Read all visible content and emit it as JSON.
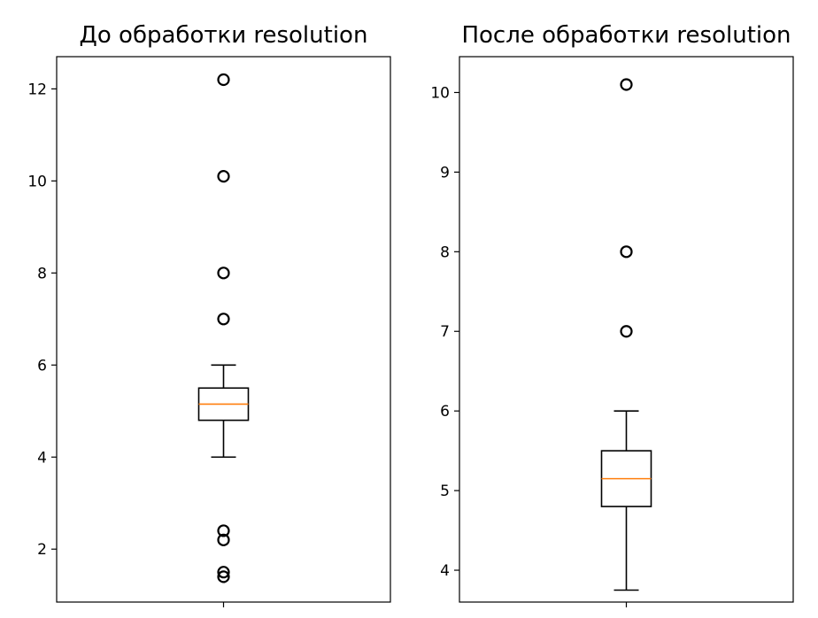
{
  "chart_data": [
    {
      "type": "box",
      "title": "До обработки resolution",
      "xlabel": "",
      "ylabel": "",
      "ylim": [
        0.85,
        12.7
      ],
      "yticks": [
        2,
        4,
        6,
        8,
        10,
        12
      ],
      "box": {
        "whisker_low": 4.0,
        "q1": 4.8,
        "median": 5.15,
        "q3": 5.5,
        "whisker_high": 6.0
      },
      "outliers": [
        12.2,
        10.1,
        8.0,
        7.0,
        2.4,
        2.2,
        1.5,
        1.4
      ],
      "grid": false,
      "colors": {
        "box": "#000000",
        "median": "#ff7f0e",
        "outlier": "#000000"
      }
    },
    {
      "type": "box",
      "title": "После обработки resolution",
      "xlabel": "",
      "ylabel": "",
      "ylim": [
        3.6,
        10.45
      ],
      "yticks": [
        4,
        5,
        6,
        7,
        8,
        9,
        10
      ],
      "box": {
        "whisker_low": 3.75,
        "q1": 4.8,
        "median": 5.15,
        "q3": 5.5,
        "whisker_high": 6.0
      },
      "outliers": [
        10.1,
        8.0,
        7.0
      ],
      "grid": false,
      "colors": {
        "box": "#000000",
        "median": "#ff7f0e",
        "outlier": "#000000"
      }
    }
  ]
}
